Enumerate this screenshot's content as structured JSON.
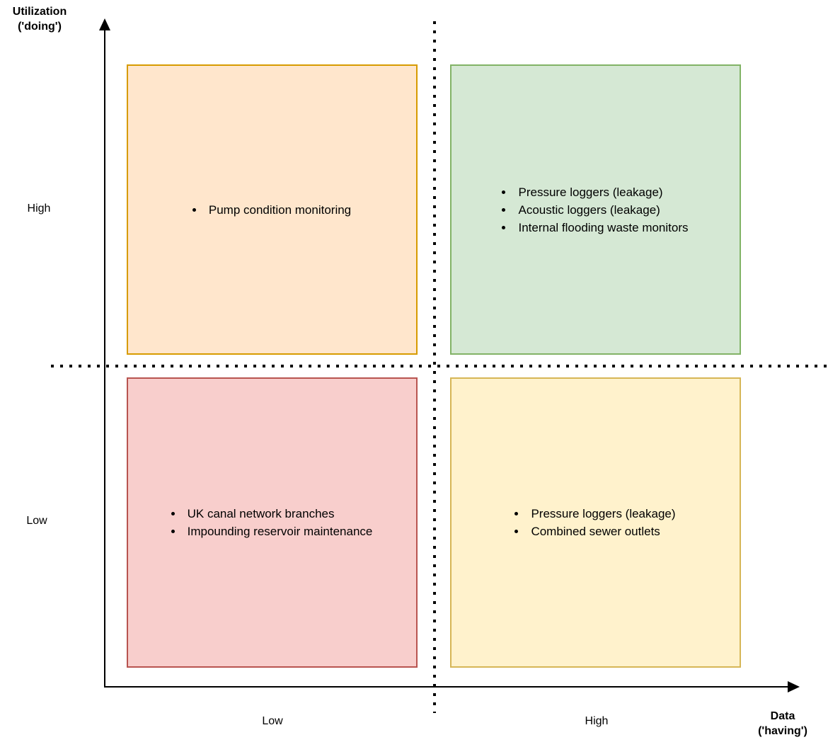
{
  "diagram": {
    "type": "quadrant-matrix",
    "y_axis": {
      "title": "Utilization\n('doing')",
      "high_label": "High",
      "low_label": "Low"
    },
    "x_axis": {
      "title": "Data\n('having')",
      "low_label": "Low",
      "high_label": "High"
    },
    "quadrants": [
      {
        "name": "high-utilization-low-data",
        "fill": "#FFE6CC",
        "stroke": "#D79B00",
        "items": [
          "Pump condition monitoring"
        ]
      },
      {
        "name": "high-utilization-high-data",
        "fill": "#D5E8D4",
        "stroke": "#82B366",
        "items": [
          "Pressure loggers (leakage)",
          "Acoustic loggers (leakage)",
          "Internal flooding waste monitors"
        ]
      },
      {
        "name": "low-utilization-low-data",
        "fill": "#F8CECC",
        "stroke": "#B85450",
        "items": [
          "UK canal network branches",
          "Impounding reservoir maintenance"
        ]
      },
      {
        "name": "low-utilization-high-data",
        "fill": "#FFF2CC",
        "stroke": "#D6B656",
        "items": [
          "Pressure loggers (leakage)",
          "Combined sewer outlets"
        ]
      }
    ],
    "colors": {
      "axis": "#000000",
      "divider_dots": "#000000",
      "background": "#FFFFFF",
      "text": "#000000"
    }
  }
}
